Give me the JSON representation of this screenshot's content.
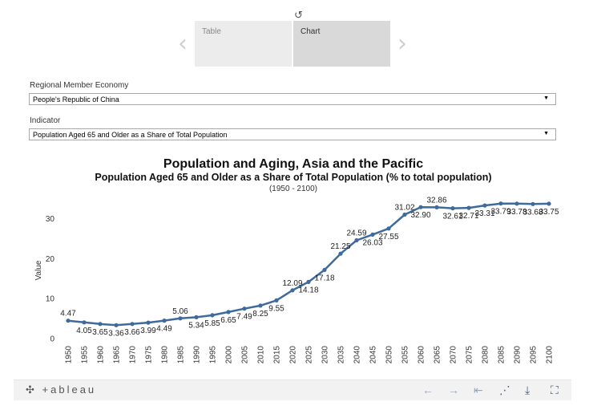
{
  "toolbar_top": {
    "reset_icon": "↺"
  },
  "tabs": [
    {
      "label": "Table",
      "active": false
    },
    {
      "label": "Chart",
      "active": true
    }
  ],
  "nav": {
    "prev_icon": "‹",
    "next_icon": "›"
  },
  "filters": {
    "economy": {
      "label": "Regional Member Economy",
      "value": "People's Republic of China"
    },
    "indicator": {
      "label": "Indicator",
      "value": "Population Aged 65 and Older as a Share of Total Population"
    }
  },
  "dropdown_caret": "▼",
  "chart_data": {
    "type": "line",
    "title": "Population and Aging, Asia and the Pacific",
    "subtitle": "Population Aged 65 and Older as a Share of Total Population (% to total population)",
    "period": "(1950 - 2100)",
    "ylabel": "Value",
    "xlabel": "",
    "ylim": [
      0,
      35
    ],
    "yticks": [
      0,
      10,
      20,
      30
    ],
    "grid": false,
    "line_color": "#3e6a9c",
    "x": [
      1950,
      1955,
      1960,
      1965,
      1970,
      1975,
      1980,
      1985,
      1990,
      1995,
      2000,
      2005,
      2010,
      2015,
      2020,
      2025,
      2030,
      2035,
      2040,
      2045,
      2050,
      2055,
      2060,
      2065,
      2070,
      2075,
      2080,
      2085,
      2090,
      2095,
      2100
    ],
    "values": [
      4.47,
      4.05,
      3.65,
      3.36,
      3.66,
      3.99,
      4.49,
      5.06,
      5.34,
      5.85,
      6.65,
      7.49,
      8.25,
      9.55,
      12.09,
      14.18,
      17.18,
      21.25,
      24.59,
      26.03,
      27.55,
      31.02,
      32.9,
      32.86,
      32.61,
      32.71,
      33.31,
      33.79,
      33.78,
      33.68,
      33.75
    ],
    "labels": [
      "4.47",
      "4.05",
      "3.65",
      "3.36",
      "3.66",
      "3.99",
      "4.49",
      "5.06",
      "5.34",
      "5.85",
      "6.65",
      "7.49",
      "8.25",
      "9.55",
      "12.09",
      "14.18",
      "17.18",
      "21.25",
      "24.59",
      "26.03",
      "27.55",
      "31.02",
      "32.90",
      "32.86",
      "32.61",
      "32.71",
      "33.31",
      "33.79",
      "33.78",
      "33.68",
      "33.75"
    ],
    "label_above": [
      true,
      false,
      false,
      false,
      false,
      false,
      false,
      true,
      false,
      false,
      false,
      false,
      false,
      false,
      true,
      false,
      false,
      true,
      true,
      false,
      false,
      true,
      false,
      true,
      false,
      false,
      false,
      false,
      false,
      false,
      false
    ]
  },
  "footer": {
    "logo_text": "+ableau",
    "logo_icon": "✣",
    "icons": [
      {
        "name": "undo-icon",
        "glyph": "←",
        "enabled": false
      },
      {
        "name": "redo-icon",
        "glyph": "→",
        "enabled": false
      },
      {
        "name": "revert-icon",
        "glyph": "⇤",
        "enabled": false
      },
      {
        "name": "share-icon",
        "glyph": "⋰",
        "enabled": true
      },
      {
        "name": "download-icon",
        "glyph": "⤓",
        "enabled": true
      },
      {
        "name": "fullscreen-icon",
        "glyph": "⛶",
        "enabled": true
      }
    ]
  }
}
